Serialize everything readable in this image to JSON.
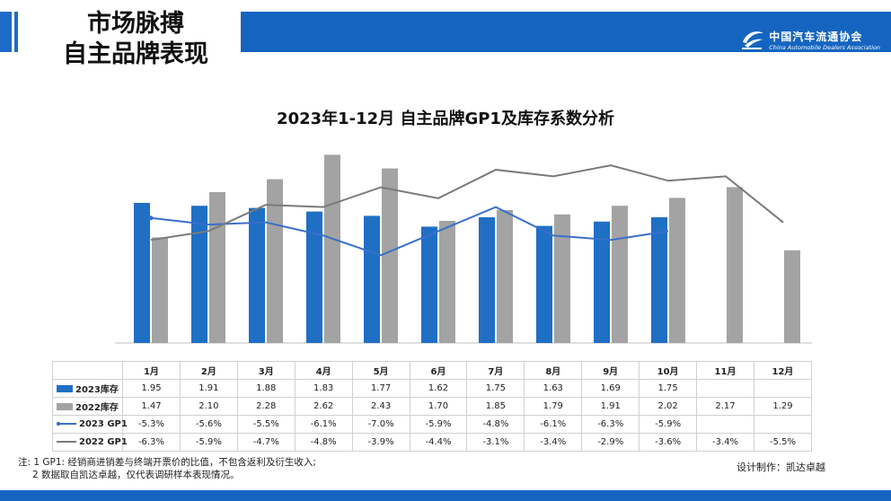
{
  "header": {
    "title_line1": "市场脉搏",
    "title_line2": "自主品牌表现",
    "logo_cn": "中国汽车流通协会",
    "logo_en": "China Automobile Dealers Association"
  },
  "colors": {
    "blue": "#1f6fc5",
    "grey": "#a3a3a3",
    "blue_line": "#3a6fc9",
    "grey_line": "#7a7a7a",
    "header_blue": "#1565c0"
  },
  "chart_data": {
    "type": "bar",
    "title": "2023年1-12月 自主品牌GP1及库存系数分析",
    "categories": [
      "1月",
      "2月",
      "3月",
      "4月",
      "5月",
      "6月",
      "7月",
      "8月",
      "9月",
      "10月",
      "11月",
      "12月"
    ],
    "series": [
      {
        "name": "2023库存",
        "type": "bar",
        "values": [
          1.95,
          1.91,
          1.88,
          1.83,
          1.77,
          1.62,
          1.75,
          1.63,
          1.69,
          1.75,
          null,
          null
        ],
        "labels": [
          "1.95",
          "1.91",
          "1.88",
          "1.83",
          "1.77",
          "1.62",
          "1.75",
          "1.63",
          "1.69",
          "1.75",
          "",
          ""
        ]
      },
      {
        "name": "2022库存",
        "type": "bar",
        "values": [
          1.47,
          2.1,
          2.28,
          2.62,
          2.43,
          1.7,
          1.85,
          1.79,
          1.91,
          2.02,
          2.17,
          1.29
        ],
        "labels": [
          "1.47",
          "2.10",
          "2.28",
          "2.62",
          "2.43",
          "1.70",
          "1.85",
          "1.79",
          "1.91",
          "2.02",
          "2.17",
          "1.29"
        ]
      },
      {
        "name": "2023 GP1",
        "type": "line",
        "values": [
          -5.3,
          -5.6,
          -5.5,
          -6.1,
          -7.0,
          -5.9,
          -4.8,
          -6.1,
          -6.3,
          -5.9,
          null,
          null
        ],
        "labels": [
          "-5.3%",
          "-5.6%",
          "-5.5%",
          "-6.1%",
          "-7.0%",
          "-5.9%",
          "-4.8%",
          "-6.1%",
          "-6.3%",
          "-5.9%",
          "",
          ""
        ]
      },
      {
        "name": "2022 GP1",
        "type": "line",
        "values": [
          -6.3,
          -5.9,
          -4.7,
          -4.8,
          -3.9,
          -4.4,
          -3.1,
          -3.4,
          -2.9,
          -3.6,
          -3.4,
          -5.5
        ],
        "labels": [
          "-6.3%",
          "-5.9%",
          "-4.7%",
          "-4.8%",
          "-3.9%",
          "-4.4%",
          "-3.1%",
          "-3.4%",
          "-2.9%",
          "-3.6%",
          "-3.4%",
          "-5.5%"
        ]
      }
    ],
    "bar_axis_range": [
      0,
      2.9
    ],
    "line_axis_range": [
      -11,
      -1.5
    ]
  },
  "notes": {
    "line1": "注: 1  GP1: 经销商进销差与终端开票价的比值，不包含返利及衍生收入;",
    "line2": "2 数据取自凯达卓越，仅代表调研样本表现情况。"
  },
  "credit": "设计制作：凯达卓越"
}
